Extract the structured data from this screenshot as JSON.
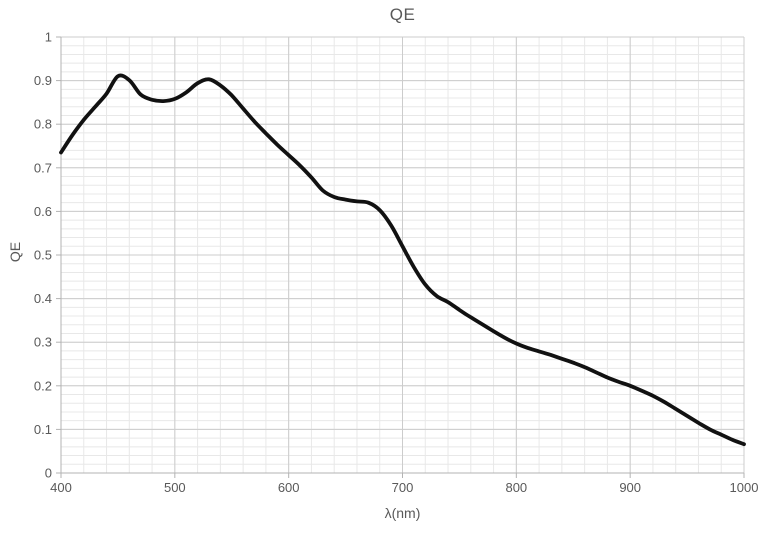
{
  "chart_data": {
    "type": "line",
    "title": "QE",
    "xlabel": "λ(nm)",
    "ylabel": "QE",
    "xlim": [
      400,
      1000
    ],
    "ylim": [
      0,
      1
    ],
    "x_ticks": [
      400,
      500,
      600,
      700,
      800,
      900,
      1000
    ],
    "y_ticks": [
      0,
      0.1,
      0.2,
      0.3,
      0.4,
      0.5,
      0.6,
      0.7,
      0.8,
      0.9,
      1
    ],
    "x_minor_step": 20,
    "y_minor_step": 0.02,
    "grid": "major+minor",
    "legend_position": "none",
    "series": [
      {
        "name": "QE",
        "color": "#111111",
        "x": [
          400,
          410,
          420,
          430,
          440,
          450,
          460,
          470,
          480,
          490,
          500,
          510,
          520,
          530,
          540,
          550,
          560,
          570,
          580,
          590,
          600,
          610,
          620,
          630,
          640,
          650,
          660,
          670,
          680,
          690,
          700,
          710,
          720,
          730,
          740,
          750,
          760,
          770,
          780,
          790,
          800,
          810,
          820,
          830,
          840,
          850,
          860,
          870,
          880,
          890,
          900,
          910,
          920,
          930,
          940,
          950,
          960,
          970,
          980,
          990,
          1000
        ],
        "y": [
          0.735,
          0.775,
          0.81,
          0.84,
          0.87,
          0.91,
          0.901,
          0.868,
          0.856,
          0.853,
          0.858,
          0.873,
          0.894,
          0.903,
          0.889,
          0.866,
          0.836,
          0.806,
          0.779,
          0.753,
          0.729,
          0.705,
          0.678,
          0.648,
          0.633,
          0.627,
          0.623,
          0.62,
          0.603,
          0.568,
          0.52,
          0.472,
          0.432,
          0.406,
          0.392,
          0.374,
          0.357,
          0.341,
          0.325,
          0.31,
          0.297,
          0.287,
          0.279,
          0.271,
          0.262,
          0.253,
          0.243,
          0.231,
          0.219,
          0.209,
          0.2,
          0.189,
          0.177,
          0.163,
          0.147,
          0.131,
          0.115,
          0.1,
          0.088,
          0.076,
          0.066
        ]
      }
    ],
    "colors": {
      "line": "#111111",
      "text": "#595959",
      "axis": "#b3b3b3",
      "grid_major": "#cccccc",
      "grid_minor": "#e8e8e8"
    }
  }
}
